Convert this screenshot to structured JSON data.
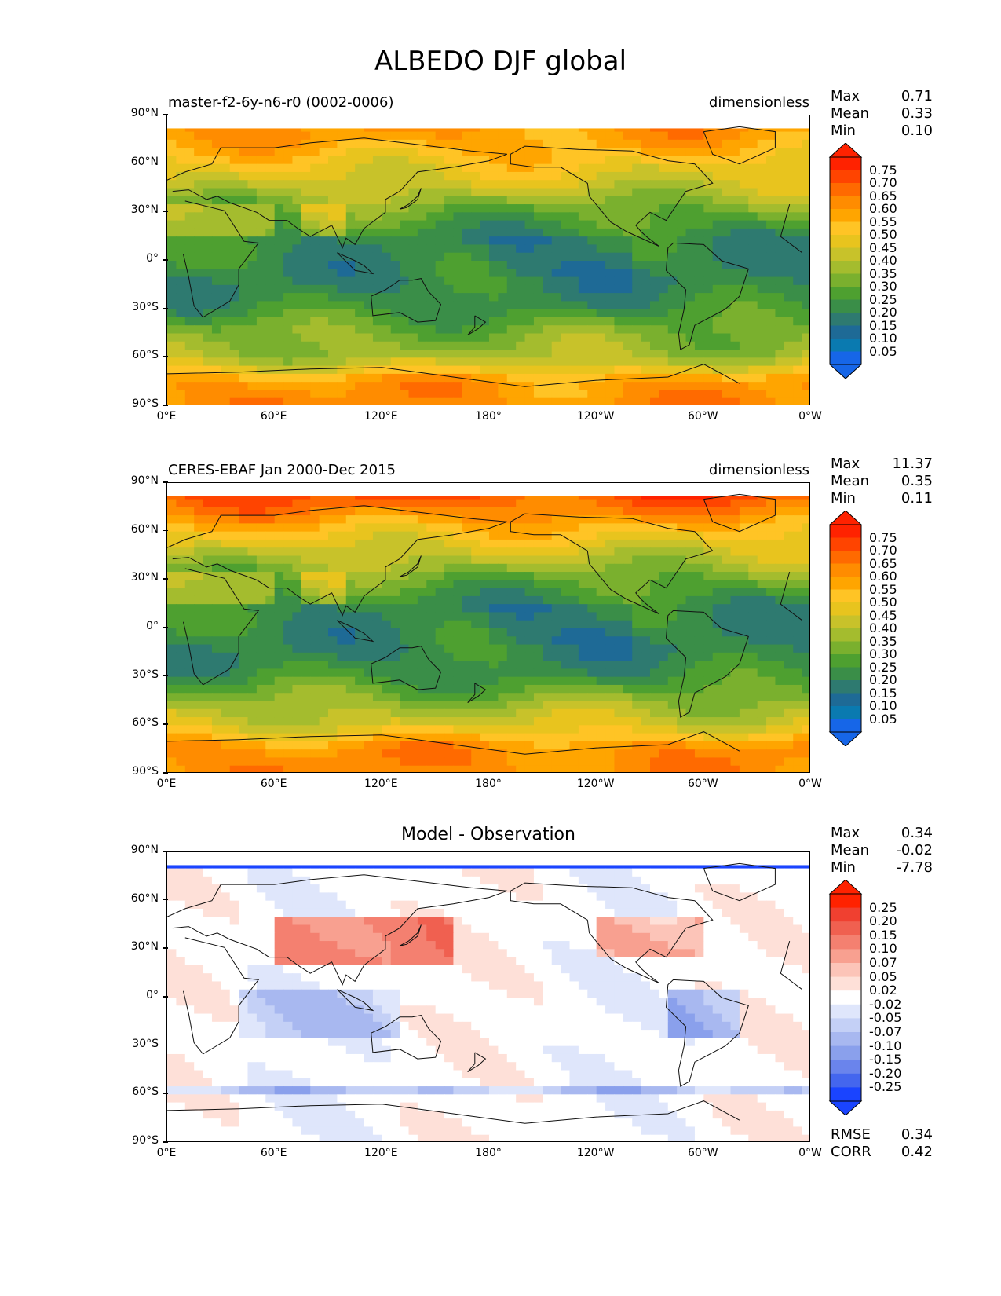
{
  "figure_title": "ALBEDO DJF global",
  "panels": [
    {
      "id": "model",
      "left_label": "master-f2-6y-n6-r0 (0002-0006)",
      "right_label": "dimensionless",
      "center_label": "",
      "stats": {
        "max_label": "Max",
        "max": "0.71",
        "mean_label": "Mean",
        "mean": "0.33",
        "min_label": "Min",
        "min": "0.10"
      },
      "colorbar": {
        "labels": [
          "0.75",
          "0.70",
          "0.65",
          "0.60",
          "0.55",
          "0.50",
          "0.45",
          "0.40",
          "0.35",
          "0.30",
          "0.25",
          "0.20",
          "0.15",
          "0.10",
          "0.05"
        ],
        "colors": [
          "#ff2200",
          "#ff4400",
          "#ff6a00",
          "#ff8c00",
          "#ffa500",
          "#ffc425",
          "#e8c41e",
          "#c8c22a",
          "#a4bc2e",
          "#7ab02e",
          "#4ea030",
          "#3a8e48",
          "#2e7a70",
          "#1e6a96",
          "#0a7ab0",
          "#1666e8"
        ]
      },
      "chart_data": {
        "type": "heatmap",
        "variable": "ALBEDO",
        "season": "DJF",
        "units": "dimensionless",
        "max": 0.71,
        "mean": 0.33,
        "min": 0.1,
        "levels": [
          0.05,
          0.1,
          0.15,
          0.2,
          0.25,
          0.3,
          0.35,
          0.4,
          0.45,
          0.5,
          0.55,
          0.6,
          0.65,
          0.7,
          0.75
        ],
        "zonal_profile": {
          "lat": [
            90,
            75,
            60,
            45,
            30,
            15,
            0,
            -15,
            -30,
            -45,
            -60,
            -75,
            -90
          ],
          "value": [
            0.62,
            0.58,
            0.5,
            0.42,
            0.3,
            0.22,
            0.22,
            0.2,
            0.24,
            0.33,
            0.38,
            0.6,
            0.62
          ]
        }
      }
    },
    {
      "id": "obs",
      "left_label": "CERES-EBAF Jan 2000-Dec 2015",
      "right_label": "dimensionless",
      "center_label": "",
      "stats": {
        "max_label": "Max",
        "max": "11.37",
        "mean_label": "Mean",
        "mean": "0.35",
        "min_label": "Min",
        "min": "0.11"
      },
      "colorbar": {
        "labels": [
          "0.75",
          "0.70",
          "0.65",
          "0.60",
          "0.55",
          "0.50",
          "0.45",
          "0.40",
          "0.35",
          "0.30",
          "0.25",
          "0.20",
          "0.15",
          "0.10",
          "0.05"
        ],
        "colors": [
          "#ff2200",
          "#ff4400",
          "#ff6a00",
          "#ff8c00",
          "#ffa500",
          "#ffc425",
          "#e8c41e",
          "#c8c22a",
          "#a4bc2e",
          "#7ab02e",
          "#4ea030",
          "#3a8e48",
          "#2e7a70",
          "#1e6a96",
          "#0a7ab0",
          "#1666e8"
        ]
      },
      "chart_data": {
        "type": "heatmap",
        "variable": "ALBEDO",
        "season": "DJF",
        "units": "dimensionless",
        "max": 11.37,
        "mean": 0.35,
        "min": 0.11,
        "levels": [
          0.05,
          0.1,
          0.15,
          0.2,
          0.25,
          0.3,
          0.35,
          0.4,
          0.45,
          0.5,
          0.55,
          0.6,
          0.65,
          0.7,
          0.75
        ],
        "zonal_profile": {
          "lat": [
            90,
            75,
            60,
            45,
            30,
            15,
            0,
            -15,
            -30,
            -45,
            -60,
            -75,
            -90
          ],
          "value": [
            0.75,
            0.66,
            0.52,
            0.42,
            0.3,
            0.22,
            0.22,
            0.2,
            0.24,
            0.35,
            0.45,
            0.62,
            0.62
          ]
        }
      }
    },
    {
      "id": "diff",
      "left_label": "",
      "right_label": "",
      "center_label": "Model - Observation",
      "stats": {
        "max_label": "Max",
        "max": "0.34",
        "mean_label": "Mean",
        "mean": "-0.02",
        "min_label": "Min",
        "min": "-7.78"
      },
      "bottom_stats": {
        "rmse_label": "RMSE",
        "rmse": "0.34",
        "corr_label": "CORR",
        "corr": "0.42"
      },
      "colorbar": {
        "labels": [
          "0.25",
          "0.20",
          "0.15",
          "0.10",
          "0.07",
          "0.05",
          "0.02",
          "-0.02",
          "-0.05",
          "-0.07",
          "-0.10",
          "-0.15",
          "-0.20",
          "-0.25"
        ],
        "colors": [
          "#ff2200",
          "#f04030",
          "#f06050",
          "#f48070",
          "#f8a090",
          "#fcc4b8",
          "#fee0d8",
          "#ffffff",
          "#dfe6fb",
          "#c4d0f6",
          "#a8b8f0",
          "#8aa0ec",
          "#6a84ec",
          "#4466ee",
          "#1a44ff"
        ]
      },
      "chart_data": {
        "type": "heatmap",
        "variable": "ALBEDO difference",
        "season": "DJF",
        "units": "dimensionless",
        "max": 0.34,
        "mean": -0.02,
        "min": -7.78,
        "rmse": 0.34,
        "corr": 0.42,
        "levels": [
          -0.25,
          -0.2,
          -0.15,
          -0.1,
          -0.07,
          -0.05,
          -0.02,
          0.02,
          0.05,
          0.07,
          0.1,
          0.15,
          0.2,
          0.25
        ]
      }
    }
  ],
  "axes": {
    "yticks": [
      "90°N",
      "60°N",
      "30°N",
      "0°",
      "30°S",
      "60°S",
      "90°S"
    ],
    "xticks": [
      "0°E",
      "60°E",
      "120°E",
      "180°",
      "120°W",
      "60°W",
      "0°W"
    ]
  }
}
